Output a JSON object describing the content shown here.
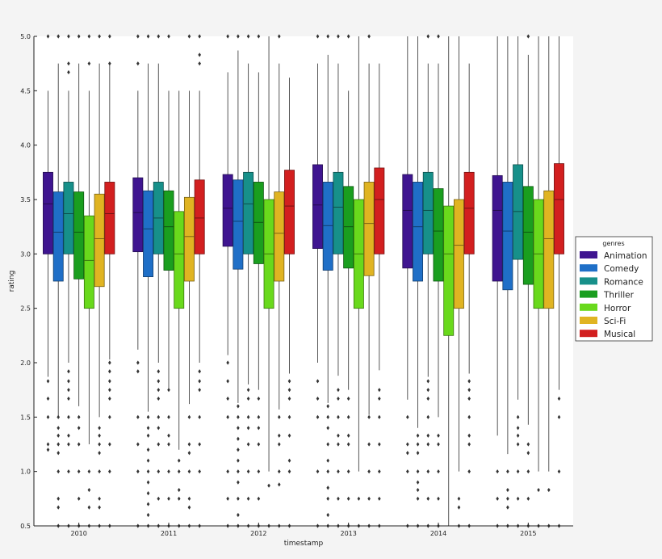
{
  "chart_data": {
    "type": "box",
    "xlabel": "timestamp",
    "ylabel": "rating",
    "ylim": [
      0.5,
      5.0
    ],
    "yticks": [
      "0.5",
      "1.0",
      "1.5",
      "2.0",
      "2.5",
      "3.0",
      "3.5",
      "4.0",
      "4.5",
      "5.0"
    ],
    "categories": [
      "2010",
      "2011",
      "2012",
      "2013",
      "2014",
      "2015"
    ],
    "grid": false,
    "legend": {
      "title": "genres",
      "placement": "right"
    },
    "series": [
      {
        "name": "Animation",
        "color": "#3f1590",
        "boxes": [
          {
            "q1": 3.0,
            "median": 3.46,
            "q3": 3.75,
            "low": 1.87,
            "high": 4.5,
            "fliers": [
              5.0,
              1.83,
              1.67,
              1.5,
              1.25,
              1.2
            ]
          },
          {
            "q1": 3.02,
            "median": 3.38,
            "q3": 3.7,
            "low": 2.12,
            "high": 4.5,
            "fliers": [
              5.0,
              4.75,
              2.0,
              1.92,
              1.5,
              1.25,
              1.0,
              0.5
            ]
          },
          {
            "q1": 3.07,
            "median": 3.42,
            "q3": 3.73,
            "low": 2.07,
            "high": 4.67,
            "fliers": [
              5.0,
              2.0,
              1.83,
              1.67,
              1.5,
              1.0,
              0.75,
              0.5
            ]
          },
          {
            "q1": 3.05,
            "median": 3.45,
            "q3": 3.82,
            "low": 2.0,
            "high": 4.75,
            "fliers": [
              5.0,
              1.83,
              1.67,
              1.5,
              1.0,
              0.5
            ]
          },
          {
            "q1": 2.87,
            "median": 3.4,
            "q3": 3.73,
            "low": 1.66,
            "high": 5.0,
            "fliers": [
              1.5,
              1.25,
              1.17,
              1.0,
              0.5
            ]
          },
          {
            "q1": 2.75,
            "median": 3.4,
            "q3": 3.72,
            "low": 1.33,
            "high": 5.0,
            "fliers": [
              1.0,
              0.75,
              0.5
            ]
          }
        ]
      },
      {
        "name": "Comedy",
        "color": "#1f6fc7",
        "boxes": [
          {
            "q1": 2.75,
            "median": 3.2,
            "q3": 3.57,
            "low": 1.5,
            "high": 4.75,
            "fliers": [
              5.0,
              1.5,
              1.4,
              1.33,
              1.25,
              1.17,
              1.0,
              0.75,
              0.67,
              0.5
            ]
          },
          {
            "q1": 2.79,
            "median": 3.23,
            "q3": 3.58,
            "low": 1.55,
            "high": 4.75,
            "fliers": [
              5.0,
              1.5,
              1.4,
              1.33,
              1.2,
              1.1,
              1.0,
              0.9,
              0.8,
              0.7,
              0.6,
              0.5
            ]
          },
          {
            "q1": 2.86,
            "median": 3.3,
            "q3": 3.68,
            "low": 1.63,
            "high": 4.87,
            "fliers": [
              5.0,
              1.6,
              1.5,
              1.4,
              1.3,
              1.2,
              1.1,
              1.0,
              0.9,
              0.75,
              0.6,
              0.5
            ]
          },
          {
            "q1": 2.85,
            "median": 3.26,
            "q3": 3.66,
            "low": 1.63,
            "high": 4.83,
            "fliers": [
              5.0,
              1.6,
              1.5,
              1.4,
              1.25,
              1.1,
              1.0,
              0.85,
              0.75,
              0.6,
              0.5
            ]
          },
          {
            "q1": 2.75,
            "median": 3.25,
            "q3": 3.66,
            "low": 1.4,
            "high": 5.0,
            "fliers": [
              1.33,
              1.25,
              1.17,
              1.0,
              0.9,
              0.83,
              0.75,
              0.5
            ]
          },
          {
            "q1": 2.67,
            "median": 3.21,
            "q3": 3.66,
            "low": 1.16,
            "high": 5.0,
            "fliers": [
              1.0,
              0.83,
              0.75,
              0.67,
              0.5
            ]
          }
        ]
      },
      {
        "name": "Romance",
        "color": "#17908a",
        "boxes": [
          {
            "q1": 3.0,
            "median": 3.37,
            "q3": 3.66,
            "low": 2.0,
            "high": 4.5,
            "fliers": [
              5.0,
              4.75,
              4.67,
              1.92,
              1.83,
              1.75,
              1.67,
              1.5,
              1.33,
              1.25,
              1.0,
              0.5
            ]
          },
          {
            "q1": 3.0,
            "median": 3.33,
            "q3": 3.66,
            "low": 2.0,
            "high": 4.75,
            "fliers": [
              5.0,
              1.92,
              1.83,
              1.75,
              1.67,
              1.5,
              1.4,
              1.25,
              1.0,
              0.75,
              0.5
            ]
          },
          {
            "q1": 3.0,
            "median": 3.46,
            "q3": 3.75,
            "low": 1.8,
            "high": 4.75,
            "fliers": [
              5.0,
              1.75,
              1.67,
              1.5,
              1.4,
              1.25,
              1.0,
              0.75,
              0.5
            ]
          },
          {
            "q1": 3.0,
            "median": 3.43,
            "q3": 3.75,
            "low": 1.88,
            "high": 4.75,
            "fliers": [
              5.0,
              1.75,
              1.67,
              1.5,
              1.33,
              1.25,
              1.0,
              0.75,
              0.5
            ]
          },
          {
            "q1": 3.0,
            "median": 3.4,
            "q3": 3.75,
            "low": 1.87,
            "high": 4.75,
            "fliers": [
              5.0,
              1.83,
              1.75,
              1.67,
              1.5,
              1.33,
              1.25,
              1.0,
              0.75,
              0.5
            ]
          },
          {
            "q1": 2.95,
            "median": 3.39,
            "q3": 3.82,
            "low": 1.66,
            "high": 5.0,
            "fliers": [
              1.5,
              1.4,
              1.33,
              1.25,
              1.0,
              0.75,
              0.5
            ]
          }
        ]
      },
      {
        "name": "Thriller",
        "color": "#1a9e1f",
        "boxes": [
          {
            "q1": 2.77,
            "median": 3.2,
            "q3": 3.57,
            "low": 1.6,
            "high": 4.75,
            "fliers": [
              5.0,
              1.5,
              1.4,
              1.25,
              1.0,
              0.75,
              0.5
            ]
          },
          {
            "q1": 2.85,
            "median": 3.25,
            "q3": 3.58,
            "low": 1.75,
            "high": 4.5,
            "fliers": [
              5.0,
              1.75,
              1.5,
              1.33,
              1.25,
              1.0,
              0.75,
              0.5
            ]
          },
          {
            "q1": 2.91,
            "median": 3.29,
            "q3": 3.66,
            "low": 1.75,
            "high": 4.67,
            "fliers": [
              5.0,
              1.67,
              1.5,
              1.4,
              1.25,
              1.0,
              0.75,
              0.5
            ]
          },
          {
            "q1": 2.87,
            "median": 3.25,
            "q3": 3.62,
            "low": 1.75,
            "high": 4.5,
            "fliers": [
              5.0,
              1.67,
              1.5,
              1.33,
              1.25,
              1.0,
              0.75,
              0.5
            ]
          },
          {
            "q1": 2.75,
            "median": 3.21,
            "q3": 3.6,
            "low": 1.5,
            "high": 4.75,
            "fliers": [
              5.0,
              1.33,
              1.25,
              1.0,
              0.75,
              0.5
            ]
          },
          {
            "q1": 2.72,
            "median": 3.2,
            "q3": 3.62,
            "low": 1.43,
            "high": 4.83,
            "fliers": [
              5.0,
              1.25,
              1.17,
              1.0,
              0.75,
              0.5
            ]
          }
        ]
      },
      {
        "name": "Horror",
        "color": "#69d91c",
        "boxes": [
          {
            "q1": 2.5,
            "median": 2.94,
            "q3": 3.35,
            "low": 1.25,
            "high": 4.5,
            "fliers": [
              4.75,
              5.0,
              1.0,
              0.83,
              0.67,
              0.5
            ]
          },
          {
            "q1": 2.5,
            "median": 3.0,
            "q3": 3.39,
            "low": 1.2,
            "high": 4.5,
            "fliers": [
              1.1,
              1.0,
              0.83,
              0.75,
              0.5
            ]
          },
          {
            "q1": 2.5,
            "median": 3.0,
            "q3": 3.5,
            "low": 1.0,
            "high": 5.0,
            "fliers": [
              0.87,
              0.5
            ]
          },
          {
            "q1": 2.5,
            "median": 3.0,
            "q3": 3.5,
            "low": 1.0,
            "high": 5.0,
            "fliers": [
              0.75,
              0.5
            ]
          },
          {
            "q1": 2.25,
            "median": 3.0,
            "q3": 3.44,
            "low": 0.5,
            "high": 5.0,
            "fliers": []
          },
          {
            "q1": 2.5,
            "median": 3.0,
            "q3": 3.5,
            "low": 1.0,
            "high": 5.0,
            "fliers": [
              0.83,
              0.5
            ]
          }
        ]
      },
      {
        "name": "Sci-Fi",
        "color": "#e0b422",
        "boxes": [
          {
            "q1": 2.7,
            "median": 3.14,
            "q3": 3.55,
            "low": 1.5,
            "high": 4.75,
            "fliers": [
              5.0,
              1.4,
              1.33,
              1.25,
              1.17,
              1.0,
              0.75,
              0.67,
              0.5
            ]
          },
          {
            "q1": 2.75,
            "median": 3.16,
            "q3": 3.52,
            "low": 1.62,
            "high": 4.5,
            "fliers": [
              5.0,
              1.5,
              1.25,
              1.17,
              1.0,
              0.75,
              0.67,
              0.5
            ]
          },
          {
            "q1": 2.75,
            "median": 3.19,
            "q3": 3.57,
            "low": 1.57,
            "high": 4.75,
            "fliers": [
              5.0,
              1.5,
              1.33,
              1.25,
              1.0,
              0.88,
              0.5
            ]
          },
          {
            "q1": 2.8,
            "median": 3.28,
            "q3": 3.66,
            "low": 1.52,
            "high": 4.75,
            "fliers": [
              5.0,
              1.5,
              1.25,
              1.0,
              0.75,
              0.5
            ]
          },
          {
            "q1": 2.5,
            "median": 3.08,
            "q3": 3.5,
            "low": 1.0,
            "high": 5.0,
            "fliers": [
              0.75,
              0.67,
              0.5
            ]
          },
          {
            "q1": 2.5,
            "median": 3.14,
            "q3": 3.58,
            "low": 1.0,
            "high": 5.0,
            "fliers": [
              0.83,
              0.5
            ]
          }
        ]
      },
      {
        "name": "Musical",
        "color": "#d21f1f",
        "boxes": [
          {
            "q1": 3.0,
            "median": 3.37,
            "q3": 3.66,
            "low": 2.03,
            "high": 4.75,
            "fliers": [
              5.0,
              4.75,
              2.0,
              1.92,
              1.83,
              1.75,
              1.67,
              1.5,
              1.25,
              1.0,
              0.5
            ]
          },
          {
            "q1": 3.0,
            "median": 3.33,
            "q3": 3.68,
            "low": 2.0,
            "high": 4.5,
            "fliers": [
              5.0,
              4.83,
              4.75,
              1.92,
              1.83,
              1.75,
              1.5,
              1.25,
              1.0,
              0.5
            ]
          },
          {
            "q1": 3.0,
            "median": 3.44,
            "q3": 3.77,
            "low": 1.9,
            "high": 4.62,
            "fliers": [
              1.83,
              1.75,
              1.67,
              1.5,
              1.33,
              1.1,
              1.0,
              0.5
            ]
          },
          {
            "q1": 3.0,
            "median": 3.5,
            "q3": 3.79,
            "low": 1.93,
            "high": 4.75,
            "fliers": [
              1.75,
              1.67,
              1.5,
              1.25,
              1.0,
              0.75,
              0.5
            ]
          },
          {
            "q1": 3.0,
            "median": 3.42,
            "q3": 3.75,
            "low": 1.9,
            "high": 4.75,
            "fliers": [
              1.83,
              1.75,
              1.67,
              1.5,
              1.33,
              1.25,
              1.0,
              0.5
            ]
          },
          {
            "q1": 3.0,
            "median": 3.5,
            "q3": 3.83,
            "low": 1.75,
            "high": 5.0,
            "fliers": [
              1.67,
              1.5,
              1.0,
              0.5
            ]
          }
        ]
      }
    ]
  }
}
